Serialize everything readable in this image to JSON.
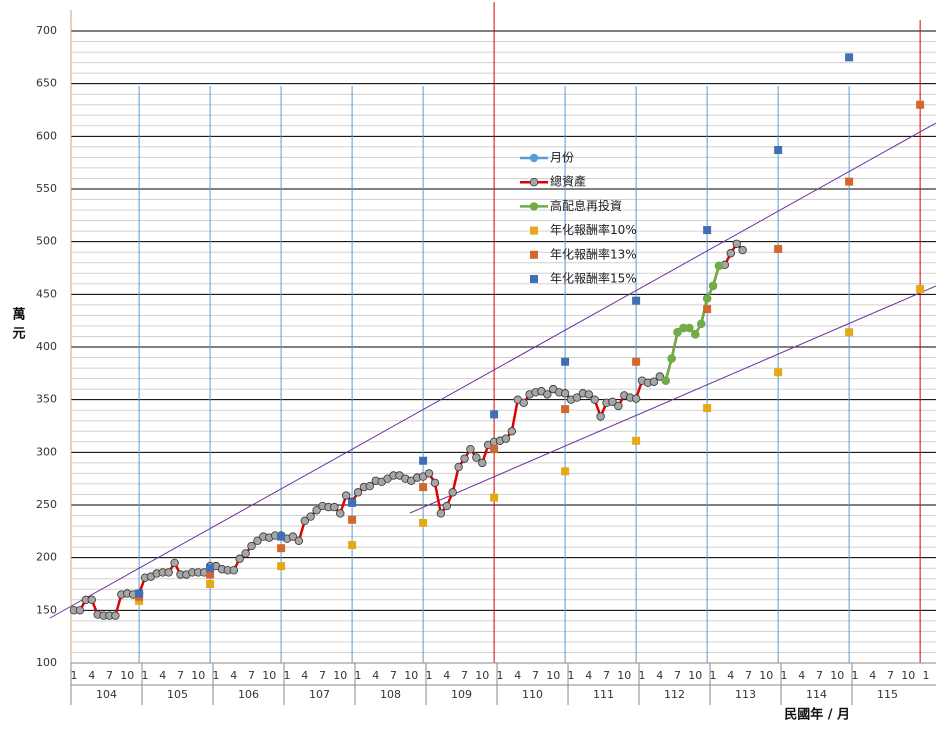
{
  "chart_data": {
    "type": "line",
    "y_label": "萬元",
    "x_label": "民國年 / 月",
    "ylim": [
      100,
      700
    ],
    "yticks": [
      100,
      150,
      200,
      250,
      300,
      350,
      400,
      450,
      500,
      550,
      600,
      650,
      700
    ],
    "minor_grid_step": 10,
    "categories": [
      "1",
      null,
      null,
      "4",
      null,
      null,
      "7",
      null,
      null,
      "10",
      null,
      null,
      "1",
      null,
      null,
      "4",
      null,
      null,
      "7",
      null,
      null,
      "10",
      null,
      null,
      "1",
      null,
      null,
      "4",
      null,
      null,
      "7",
      null,
      null,
      "10",
      null,
      null,
      "1",
      null,
      null,
      "4",
      null,
      null,
      "7",
      null,
      null,
      "10",
      null,
      null,
      "1",
      null,
      null,
      "4",
      null,
      null,
      "7",
      null,
      null,
      "10",
      null,
      null,
      "1",
      null,
      null,
      "4",
      null,
      null,
      "7",
      null,
      null,
      "10",
      null,
      null,
      "1",
      null,
      null,
      "4",
      null,
      null,
      "7",
      null,
      null,
      "10",
      null,
      null,
      "1",
      null,
      null,
      "4",
      null,
      null,
      "7",
      null,
      null,
      "10",
      null,
      null,
      "1",
      null,
      null,
      "4",
      null,
      null,
      "7",
      null,
      null,
      "10",
      null,
      null,
      "1",
      null,
      null,
      "4",
      null,
      null,
      "7",
      null,
      null,
      "10",
      null,
      null,
      "1",
      null,
      null,
      "4",
      null,
      null,
      "7",
      null,
      null,
      "10",
      null,
      null,
      "1",
      null,
      null,
      "4",
      null,
      null,
      "7",
      null,
      null,
      "10",
      null,
      null,
      "1"
    ],
    "x_groups": [
      "104",
      "105",
      "106",
      "107",
      "108",
      "109",
      "110",
      "111",
      "112",
      "113",
      "114",
      "115"
    ],
    "series": [
      {
        "name": "月份",
        "color": "#5b9bd5",
        "kind": "line"
      },
      {
        "name": "總資產",
        "color": "#e00000",
        "marker_color": "#a6a6a6",
        "kind": "line",
        "values": [
          150,
          150,
          160,
          160,
          146,
          145,
          145,
          145,
          165,
          166,
          165,
          166,
          181,
          182,
          185,
          186,
          186,
          195,
          184,
          184,
          186,
          186,
          186,
          192,
          192,
          189,
          188,
          188,
          199,
          204,
          211,
          216,
          220,
          219,
          221,
          221,
          218,
          220,
          216,
          235,
          239,
          245,
          249,
          248,
          248,
          242,
          259,
          253,
          262,
          267,
          268,
          273,
          272,
          275,
          278,
          278,
          275,
          273,
          276,
          277,
          280,
          271,
          242,
          249,
          262,
          286,
          294,
          303,
          295,
          290,
          307,
          310,
          311,
          313,
          320,
          350,
          347,
          355,
          357,
          358,
          355,
          360,
          357,
          356,
          350,
          352,
          356,
          355,
          350,
          334,
          347,
          348,
          344,
          354,
          352,
          351,
          368,
          366,
          367,
          372,
          368,
          389,
          414,
          418,
          418,
          412,
          422,
          446,
          458,
          477,
          478,
          489,
          498,
          492,
          null,
          null,
          null,
          null,
          null,
          null,
          null,
          null,
          null,
          null,
          null,
          null,
          null,
          null,
          null,
          null,
          null,
          null,
          null,
          null,
          null,
          null,
          null,
          null,
          null,
          null,
          null,
          null,
          null,
          null,
          null
        ]
      },
      {
        "name": "高配息再投資",
        "color": "#70ad47",
        "marker_color": "#70ad47",
        "kind": "line",
        "values": [
          null,
          null,
          null,
          null,
          null,
          null,
          null,
          null,
          null,
          null,
          null,
          null,
          null,
          null,
          null,
          null,
          null,
          null,
          null,
          null,
          null,
          null,
          null,
          null,
          null,
          null,
          null,
          null,
          null,
          null,
          null,
          null,
          null,
          null,
          null,
          null,
          null,
          null,
          null,
          null,
          null,
          null,
          null,
          null,
          null,
          null,
          null,
          null,
          null,
          null,
          null,
          null,
          null,
          null,
          null,
          null,
          null,
          null,
          null,
          null,
          null,
          null,
          null,
          null,
          null,
          null,
          null,
          null,
          null,
          null,
          null,
          null,
          null,
          null,
          null,
          null,
          null,
          null,
          null,
          null,
          null,
          null,
          null,
          null,
          null,
          null,
          null,
          null,
          null,
          null,
          null,
          null,
          null,
          null,
          null,
          null,
          null,
          null,
          null,
          null,
          368,
          389,
          414,
          418,
          418,
          412,
          422,
          446,
          458,
          477,
          null,
          null,
          null,
          null,
          null,
          null,
          null,
          null,
          null,
          null,
          null,
          null,
          null,
          null,
          null,
          null,
          null,
          null,
          null,
          null,
          null,
          null,
          null,
          null,
          null,
          null,
          null,
          null,
          null,
          null,
          null,
          null,
          null,
          null,
          null
        ]
      },
      {
        "name": "年化報酬率10%",
        "color": "#e6a817",
        "kind": "scatter",
        "values": [
          null,
          null,
          null,
          null,
          null,
          null,
          null,
          null,
          null,
          null,
          null,
          159,
          null,
          null,
          null,
          null,
          null,
          null,
          null,
          null,
          null,
          null,
          null,
          175,
          null,
          null,
          null,
          null,
          null,
          null,
          null,
          null,
          null,
          null,
          null,
          192,
          null,
          null,
          null,
          null,
          null,
          null,
          null,
          null,
          null,
          null,
          null,
          212,
          null,
          null,
          null,
          null,
          null,
          null,
          null,
          null,
          null,
          null,
          null,
          233,
          null,
          null,
          null,
          null,
          null,
          null,
          null,
          null,
          null,
          null,
          null,
          257,
          null,
          null,
          null,
          null,
          null,
          null,
          null,
          null,
          null,
          null,
          null,
          282,
          null,
          null,
          null,
          null,
          null,
          null,
          null,
          null,
          null,
          null,
          null,
          311,
          null,
          null,
          null,
          null,
          null,
          null,
          null,
          null,
          null,
          null,
          null,
          342,
          null,
          null,
          null,
          null,
          null,
          null,
          null,
          null,
          null,
          null,
          null,
          376,
          null,
          null,
          null,
          null,
          null,
          null,
          null,
          null,
          null,
          null,
          null,
          414,
          null,
          null,
          null,
          null,
          null,
          null,
          null,
          null,
          null,
          null,
          null,
          455,
          null
        ]
      },
      {
        "name": "年化報酬率13%",
        "color": "#d2692c",
        "kind": "scatter",
        "values": [
          null,
          null,
          null,
          null,
          null,
          null,
          null,
          null,
          null,
          null,
          null,
          163,
          null,
          null,
          null,
          null,
          null,
          null,
          null,
          null,
          null,
          null,
          null,
          184,
          null,
          null,
          null,
          null,
          null,
          null,
          null,
          null,
          null,
          null,
          null,
          209,
          null,
          null,
          null,
          null,
          null,
          null,
          null,
          null,
          null,
          null,
          null,
          236,
          null,
          null,
          null,
          null,
          null,
          null,
          null,
          null,
          null,
          null,
          null,
          267,
          null,
          null,
          null,
          null,
          null,
          null,
          null,
          null,
          null,
          null,
          null,
          303,
          null,
          null,
          null,
          null,
          null,
          null,
          null,
          null,
          null,
          null,
          null,
          341,
          null,
          null,
          null,
          null,
          null,
          null,
          null,
          null,
          null,
          null,
          null,
          386,
          null,
          null,
          null,
          null,
          null,
          null,
          null,
          null,
          null,
          null,
          null,
          436,
          null,
          null,
          null,
          null,
          null,
          null,
          null,
          null,
          null,
          null,
          null,
          493,
          null,
          null,
          null,
          null,
          null,
          null,
          null,
          null,
          null,
          null,
          null,
          557,
          null,
          null,
          null,
          null,
          null,
          null,
          null,
          null,
          null,
          null,
          null,
          630,
          null
        ]
      },
      {
        "name": "年化報酬率15%",
        "color": "#3f6fb5",
        "kind": "scatter",
        "values": [
          null,
          null,
          null,
          null,
          null,
          null,
          null,
          null,
          null,
          null,
          null,
          166,
          null,
          null,
          null,
          null,
          null,
          null,
          null,
          null,
          null,
          null,
          null,
          190,
          null,
          null,
          null,
          null,
          null,
          null,
          null,
          null,
          null,
          null,
          null,
          220,
          null,
          null,
          null,
          null,
          null,
          null,
          null,
          null,
          null,
          null,
          null,
          252,
          null,
          null,
          null,
          null,
          null,
          null,
          null,
          null,
          null,
          null,
          null,
          292,
          null,
          null,
          null,
          null,
          null,
          null,
          null,
          null,
          null,
          null,
          null,
          336,
          null,
          null,
          null,
          null,
          null,
          null,
          null,
          null,
          null,
          null,
          null,
          386,
          null,
          null,
          null,
          null,
          null,
          null,
          null,
          null,
          null,
          null,
          null,
          444,
          null,
          null,
          null,
          null,
          null,
          null,
          null,
          null,
          null,
          null,
          null,
          511,
          null,
          null,
          null,
          null,
          null,
          null,
          null,
          null,
          null,
          null,
          null,
          587,
          null,
          null,
          null,
          null,
          null,
          null,
          null,
          null,
          null,
          null,
          null,
          675,
          null,
          null,
          null,
          null,
          null,
          null,
          null,
          null,
          null,
          null,
          null,
          null,
          null
        ]
      }
    ]
  }
}
